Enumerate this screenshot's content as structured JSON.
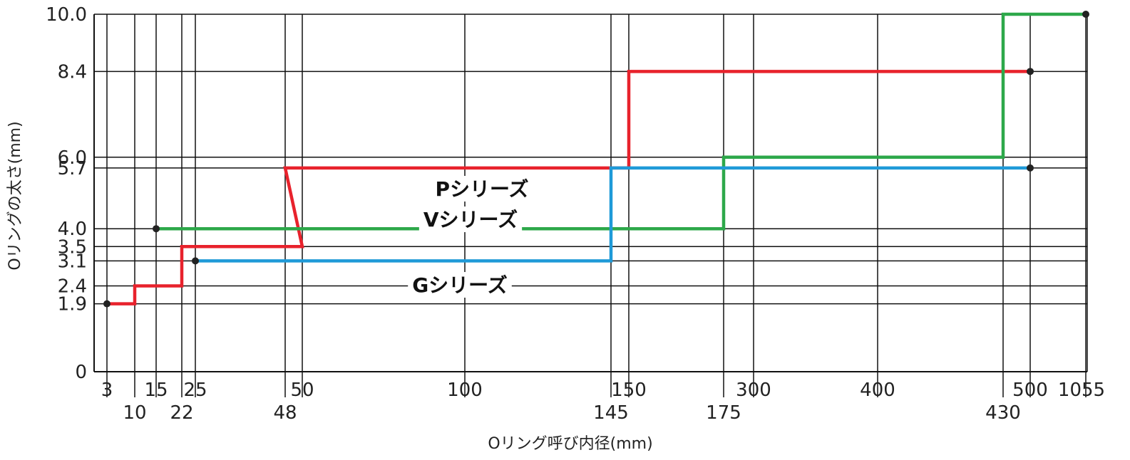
{
  "chart_data": {
    "type": "line",
    "title": "",
    "xlabel": "Oリング呼び内径(mm)",
    "ylabel": "Oリングの太さ(mm)",
    "x_ticks": [
      "3",
      "10",
      "15",
      "22",
      "25",
      "48",
      "50",
      "100",
      "145",
      "150",
      "175",
      "300",
      "400",
      "430",
      "500",
      "1055"
    ],
    "y_ticks": [
      "0",
      "1.9",
      "2.4",
      "3.1",
      "3.5",
      "4.0",
      "5.7",
      "6.0",
      "8.4",
      "10.0"
    ],
    "ylim": [
      0,
      10
    ],
    "grid": true,
    "series": [
      {
        "name": "Pシリーズ",
        "color": "#e8222c",
        "points": [
          [
            "3",
            1.9
          ],
          [
            "10",
            1.9
          ],
          [
            "10",
            2.4
          ],
          [
            "22",
            2.4
          ],
          [
            "22",
            3.5
          ],
          [
            "50",
            3.5
          ],
          [
            "48",
            5.7
          ],
          [
            "150",
            5.7
          ],
          [
            "150",
            8.4
          ],
          [
            "500",
            8.4
          ]
        ]
      },
      {
        "name": "Vシリーズ",
        "color": "#2da84a",
        "points": [
          [
            "15",
            4.0
          ],
          [
            "175",
            4.0
          ],
          [
            "175",
            6.0
          ],
          [
            "430",
            6.0
          ],
          [
            "430",
            10.0
          ],
          [
            "1055",
            10.0
          ]
        ]
      },
      {
        "name": "Gシリーズ",
        "color": "#1f9ad8",
        "points": [
          [
            "25",
            3.1
          ],
          [
            "145",
            3.1
          ],
          [
            "145",
            5.7
          ],
          [
            "500",
            5.7
          ]
        ]
      }
    ]
  }
}
